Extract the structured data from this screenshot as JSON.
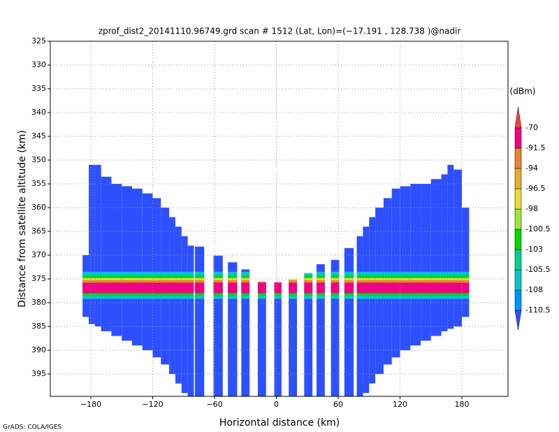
{
  "chart_data": {
    "type": "profile",
    "title": "zprof_dist2_20141110.96749.grd   scan # 1512  (Lat, Lon)=(−17.191 , 128.738 )@nadir",
    "xlabel": "Horizontal distance (km)",
    "ylabel": "Distance from satellite altitude (km)",
    "footer": "GrADS: COLA/IGES",
    "xlim": [
      -219.3,
      224.7
    ],
    "ylim": [
      325,
      399.7
    ],
    "xticks": [
      {
        "value": -180,
        "label": "−180"
      },
      {
        "value": -120,
        "label": "−120"
      },
      {
        "value": -60,
        "label": "−60"
      },
      0,
      60,
      120,
      180
    ],
    "yticks": [
      325,
      330,
      335,
      340,
      345,
      350,
      355,
      360,
      365,
      370,
      375,
      380,
      385,
      390,
      395
    ],
    "grid": true,
    "colorbar": {
      "unit": "(dBm)",
      "levels": [
        -110.5,
        -108,
        -105.5,
        -103,
        -100.5,
        -98,
        -96.5,
        -94,
        -91.5,
        -70
      ],
      "colors": [
        "#2d50ff",
        "#0096ff",
        "#00c8c8",
        "#00d28c",
        "#00dc00",
        "#a0e632",
        "#e6dc32",
        "#e6af2d",
        "#f08228",
        "#f00082",
        "#fa3c3c"
      ]
    },
    "background_value": -112,
    "columns": [
      {
        "x": [
          -188,
          -182
        ],
        "top": 370,
        "bottom": 383
      },
      {
        "x": [
          -182,
          -176
        ],
        "top": 351,
        "bottom": 384.5
      },
      {
        "x": [
          -176,
          -170
        ],
        "top": 351,
        "bottom": 385
      },
      {
        "x": [
          -170,
          -160
        ],
        "top": 353.5,
        "bottom": 386
      },
      {
        "x": [
          -160,
          -150
        ],
        "top": 355,
        "bottom": 387
      },
      {
        "x": [
          -150,
          -140
        ],
        "top": 355.5,
        "bottom": 388
      },
      {
        "x": [
          -140,
          -130
        ],
        "top": 356,
        "bottom": 389
      },
      {
        "x": [
          -130,
          -120
        ],
        "top": 357,
        "bottom": 390
      },
      {
        "x": [
          -120,
          -112
        ],
        "top": 358,
        "bottom": 391.5
      },
      {
        "x": [
          -112,
          -104
        ],
        "top": 360,
        "bottom": 393
      },
      {
        "x": [
          -104,
          -98
        ],
        "top": 362,
        "bottom": 395
      },
      {
        "x": [
          -98,
          -92
        ],
        "top": 364,
        "bottom": 397
      },
      {
        "x": [
          -92,
          -86
        ],
        "top": 366,
        "bottom": 399
      },
      {
        "x": [
          -86,
          -80
        ],
        "top": 368,
        "bottom": 399.7
      },
      {
        "x": [
          -79,
          -70
        ],
        "top": 368.2,
        "bottom": 399.7
      },
      {
        "x": [
          -61,
          -52
        ],
        "top": 370.1,
        "bottom": 399.7
      },
      {
        "x": [
          -47,
          -38
        ],
        "top": 371.5,
        "bottom": 399.7
      },
      {
        "x": [
          -34,
          -26
        ],
        "top": 373,
        "bottom": 399.7
      },
      {
        "x": [
          -18,
          -10
        ],
        "top": 375.6,
        "bottom": 399.7
      },
      {
        "x": [
          -2,
          5
        ],
        "top": 375.7,
        "bottom": 399.7
      },
      {
        "x": [
          12,
          20
        ],
        "top": 375.1,
        "bottom": 399.7
      },
      {
        "x": [
          27,
          35
        ],
        "top": 373.8,
        "bottom": 399.7
      },
      {
        "x": [
          39,
          47
        ],
        "top": 371.9,
        "bottom": 399.7
      },
      {
        "x": [
          53,
          61
        ],
        "top": 371,
        "bottom": 399.7
      },
      {
        "x": [
          66,
          75
        ],
        "top": 368.5,
        "bottom": 399.7
      },
      {
        "x": [
          78,
          84
        ],
        "top": 366,
        "bottom": 399.7
      },
      {
        "x": [
          84,
          90
        ],
        "top": 364,
        "bottom": 399
      },
      {
        "x": [
          90,
          96
        ],
        "top": 362,
        "bottom": 397
      },
      {
        "x": [
          96,
          104
        ],
        "top": 360,
        "bottom": 395
      },
      {
        "x": [
          104,
          112
        ],
        "top": 358,
        "bottom": 393
      },
      {
        "x": [
          112,
          120
        ],
        "top": 356,
        "bottom": 391.5
      },
      {
        "x": [
          120,
          130
        ],
        "top": 355.5,
        "bottom": 390
      },
      {
        "x": [
          130,
          140
        ],
        "top": 355,
        "bottom": 389
      },
      {
        "x": [
          140,
          150
        ],
        "top": 355,
        "bottom": 388
      },
      {
        "x": [
          150,
          160
        ],
        "top": 354,
        "bottom": 387
      },
      {
        "x": [
          160,
          166
        ],
        "top": 353,
        "bottom": 386
      },
      {
        "x": [
          166,
          172
        ],
        "top": 351,
        "bottom": 385.5
      },
      {
        "x": [
          172,
          180
        ],
        "top": 352,
        "bottom": 385
      },
      {
        "x": [
          180,
          187
        ],
        "top": 360,
        "bottom": 383
      }
    ],
    "layers": [
      {
        "value": -107,
        "top": 373.5,
        "bottom": 374.3
      },
      {
        "value": -101,
        "top": 374.3,
        "bottom": 374.8
      },
      {
        "value": -97,
        "top": 374.8,
        "bottom": 375.3
      },
      {
        "value": -93,
        "top": 375.3,
        "bottom": 375.8
      },
      {
        "value": -85,
        "top": 375.8,
        "bottom": 378
      },
      {
        "value": -102,
        "top": 378,
        "bottom": 378.5
      },
      {
        "value": -107,
        "top": 378.5,
        "bottom": 379.2
      }
    ]
  }
}
